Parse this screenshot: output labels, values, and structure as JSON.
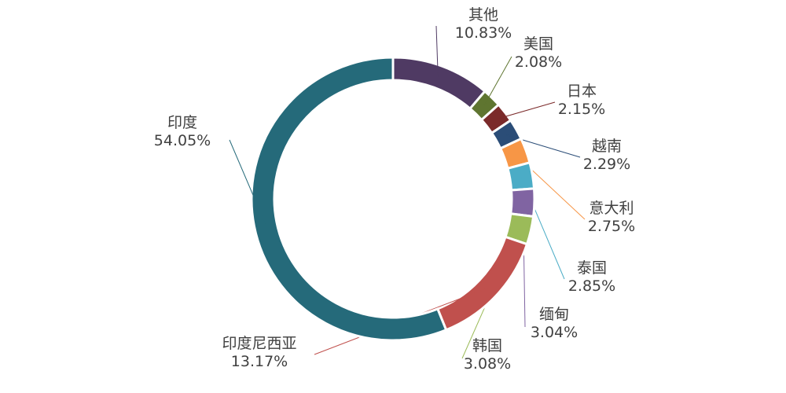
{
  "chart_data": {
    "type": "pie",
    "donut": true,
    "slices": [
      {
        "label": "其他",
        "value": 10.83,
        "display": "10.83%",
        "color": "#4f3a63"
      },
      {
        "label": "美国",
        "value": 2.08,
        "display": "2.08%",
        "color": "#5f7530"
      },
      {
        "label": "日本",
        "value": 2.15,
        "display": "2.15%",
        "color": "#7b2a2a"
      },
      {
        "label": "越南",
        "value": 2.29,
        "display": "2.29%",
        "color": "#2b4d77"
      },
      {
        "label": "意大利",
        "value": 2.75,
        "display": "2.75%",
        "color": "#f79646"
      },
      {
        "label": "泰国",
        "value": 2.85,
        "display": "2.85%",
        "color": "#4bacc6"
      },
      {
        "label": "缅甸",
        "value": 3.04,
        "display": "3.04%",
        "color": "#8064a2"
      },
      {
        "label": "韩国",
        "value": 3.08,
        "display": "3.08%",
        "color": "#9bbb59"
      },
      {
        "label": "印度尼西亚",
        "value": 13.17,
        "display": "13.17%",
        "color": "#c0504d"
      },
      {
        "label": "印度",
        "value": 54.05,
        "display": "54.05%",
        "color": "#256a7a"
      }
    ]
  }
}
